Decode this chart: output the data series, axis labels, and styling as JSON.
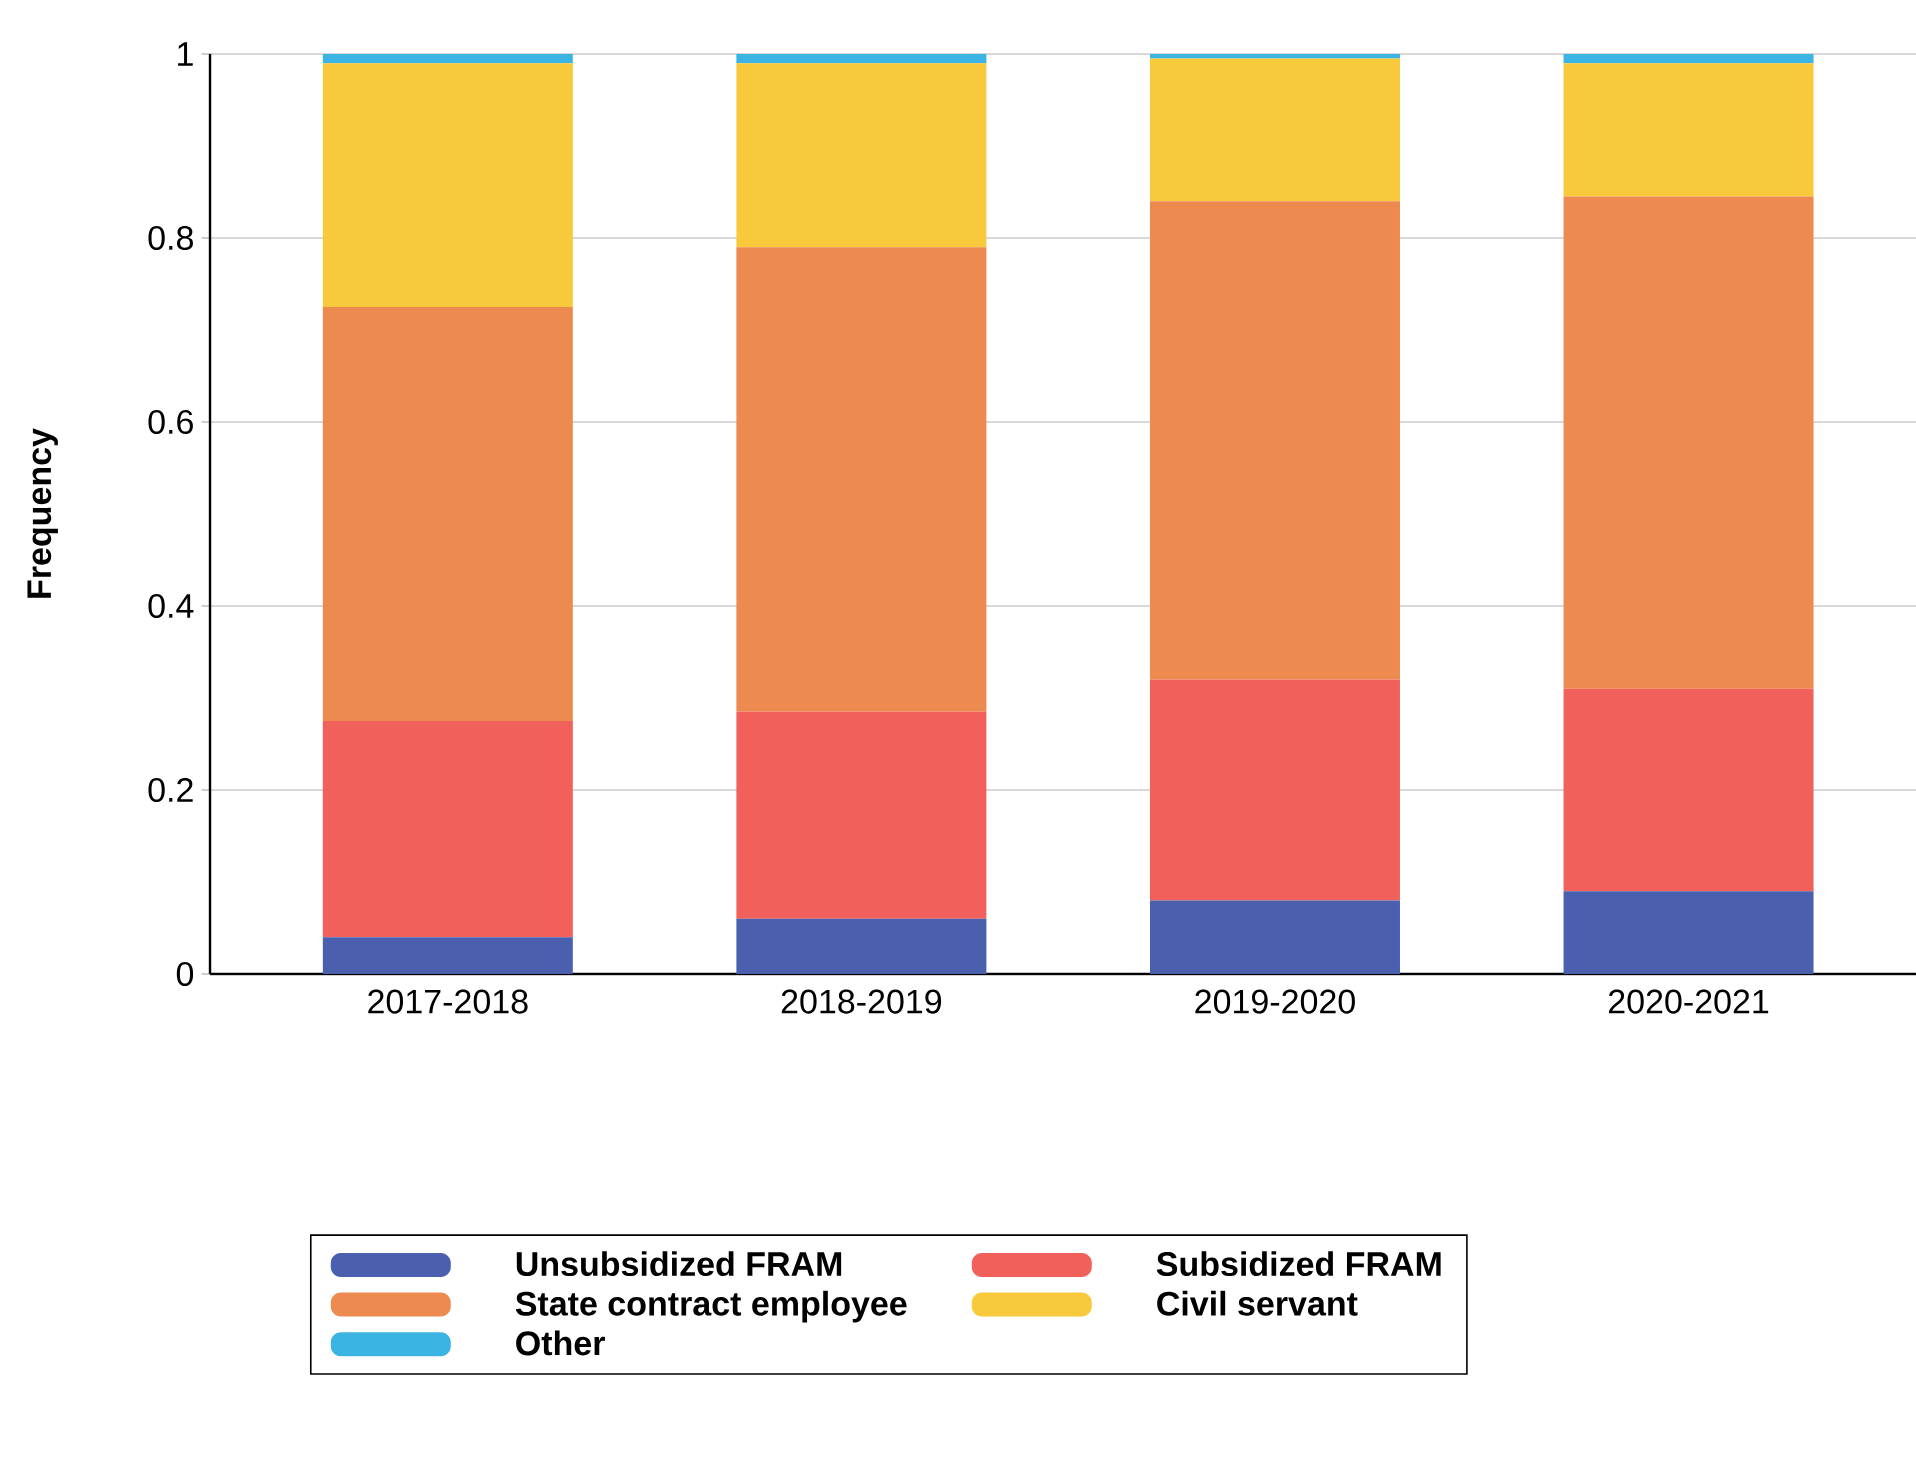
{
  "chart_data": {
    "type": "bar",
    "stacked": true,
    "ylabel": "Frequency",
    "categories": [
      "2017-2018",
      "2018-2019",
      "2019-2020",
      "2020-2021"
    ],
    "series": [
      {
        "name": "Unsubsidized FRAM",
        "color": "#4a5fad",
        "values": [
          0.04,
          0.06,
          0.08,
          0.09
        ]
      },
      {
        "name": "Subsidized FRAM",
        "color": "#f2605c",
        "values": [
          0.235,
          0.225,
          0.24,
          0.22
        ]
      },
      {
        "name": "State contract employee",
        "color": "#ec8a4f",
        "values": [
          0.45,
          0.505,
          0.52,
          0.535
        ]
      },
      {
        "name": "Civil servant",
        "color": "#f8c93a",
        "values": [
          0.265,
          0.2,
          0.155,
          0.145
        ]
      },
      {
        "name": "Other",
        "color": "#3bb4e3",
        "values": [
          0.01,
          0.01,
          0.005,
          0.01
        ]
      }
    ],
    "ylim": [
      0,
      1
    ],
    "yticks": [
      0,
      0.2,
      0.4,
      0.6,
      0.8,
      1
    ],
    "grid": "y",
    "legend": "bottom"
  }
}
